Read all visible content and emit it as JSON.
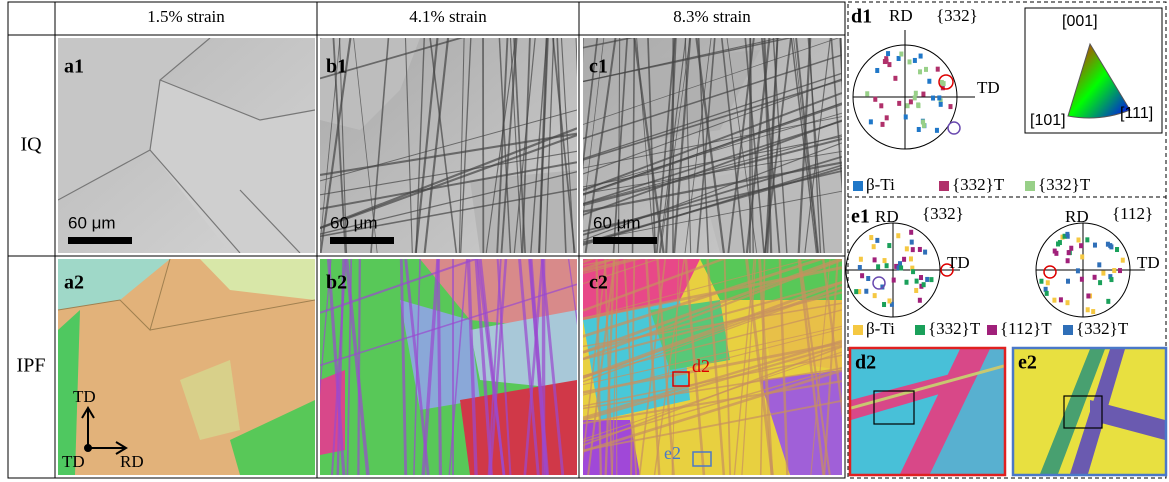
{
  "table": {
    "columns": [
      "1.5% strain",
      "4.1% strain",
      "8.3% strain"
    ],
    "rows": [
      "IQ",
      "IPF"
    ],
    "panels": [
      [
        "a1",
        "b1",
        "c1"
      ],
      [
        "a2",
        "b2",
        "c2"
      ]
    ],
    "scale_bars": [
      "60 μm",
      "60 μm",
      "60 μm"
    ],
    "axes": {
      "up": "TD",
      "origin": "TD",
      "right": "RD"
    },
    "markers": [
      "d2",
      "e2"
    ]
  },
  "pole_figure_d1": {
    "label": "d1",
    "rd": "RD",
    "plane": "{332}",
    "td": "TD",
    "legend": [
      {
        "name": "β-Ti",
        "color": "#1f77c8"
      },
      {
        "name": "{332}T",
        "color": "#b0306a"
      },
      {
        "name": "{332}T",
        "color": "#98d088"
      }
    ]
  },
  "ipf_key": {
    "top": "[001]",
    "left": "[101]",
    "right": "[111]"
  },
  "pole_figure_e1": {
    "label": "e1",
    "figures": [
      {
        "rd": "RD",
        "plane": "{332}",
        "td": "TD"
      },
      {
        "rd": "RD",
        "plane": "{112}",
        "td": "TD"
      }
    ],
    "legend": [
      {
        "name": "β-Ti",
        "color": "#f5c842"
      },
      {
        "name": "{332}T",
        "color": "#1aa05a"
      },
      {
        "name": "{112}T",
        "color": "#a0207a"
      },
      {
        "name": "{332}T",
        "color": "#2f6fb8"
      }
    ]
  },
  "insets": [
    "d2",
    "e2"
  ]
}
